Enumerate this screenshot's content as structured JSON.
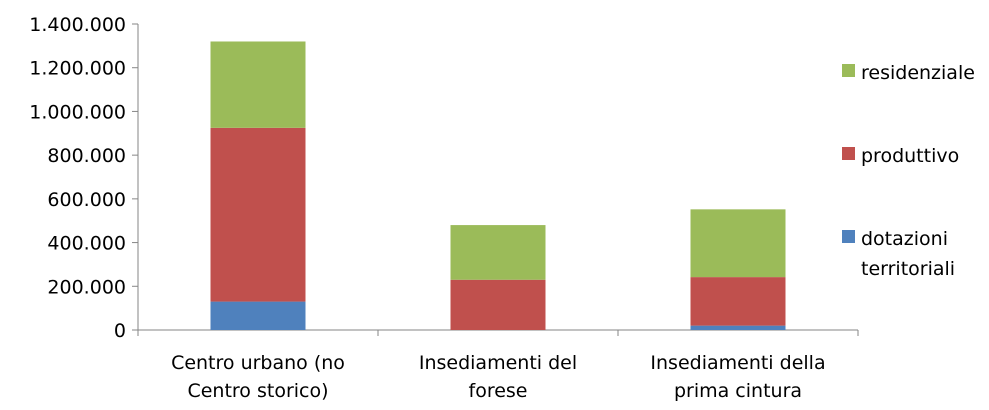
{
  "chart_data": {
    "type": "bar",
    "stacked": true,
    "categories": [
      [
        "Centro urbano (no",
        "Centro storico)"
      ],
      [
        "Insediamenti del",
        "forese"
      ],
      [
        "Insediamenti della",
        "prima cintura"
      ]
    ],
    "series": [
      {
        "name": "dotazioni territoriali",
        "legend_lines": [
          "dotazioni",
          "territoriali"
        ],
        "color": "#4F81BD",
        "values": [
          130000,
          0,
          20000
        ]
      },
      {
        "name": "produttivo",
        "legend_lines": [
          "produttivo"
        ],
        "color": "#C0504D",
        "values": [
          795000,
          230000,
          222000
        ]
      },
      {
        "name": "residenziale",
        "legend_lines": [
          "residenziale"
        ],
        "color": "#9BBB59",
        "values": [
          395000,
          250000,
          310000
        ]
      }
    ],
    "ylim": [
      0,
      1400000
    ],
    "yticks": [
      "0",
      "200.000",
      "400.000",
      "600.000",
      "800.000",
      "1.000.000",
      "1.200.000",
      "1.400.000"
    ],
    "ytick_values": [
      0,
      200000,
      400000,
      600000,
      800000,
      1000000,
      1200000,
      1400000
    ],
    "grid": false,
    "legend_position": "right"
  }
}
